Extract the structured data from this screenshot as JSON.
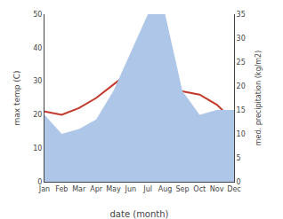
{
  "chart_data": {
    "type": "line",
    "categories": [
      "Jan",
      "Feb",
      "Mar",
      "Apr",
      "May",
      "Jun",
      "Jul",
      "Aug",
      "Sep",
      "Oct",
      "Nov",
      "Dec"
    ],
    "series": [
      {
        "type": "area",
        "color": "#aec6e8",
        "axis": "y2",
        "values": [
          14,
          10,
          11,
          13,
          19,
          27,
          35,
          35,
          19,
          14,
          15,
          15
        ]
      },
      {
        "type": "line",
        "color": "#c0392b",
        "values": [
          21,
          20,
          22,
          25,
          29,
          33,
          32,
          30,
          27,
          26,
          23,
          18
        ]
      }
    ],
    "xlabel": "date (month)",
    "ylabel": "max temp (C)",
    "y2label": "med. precipitation (kg/m2)",
    "ylim": [
      0,
      50
    ],
    "yticks": [
      0,
      10,
      20,
      30,
      40,
      50
    ],
    "y2lim": [
      0,
      35
    ],
    "y2ticks": [
      0,
      5,
      10,
      15,
      20,
      25,
      30,
      35
    ],
    "grid": false
  }
}
